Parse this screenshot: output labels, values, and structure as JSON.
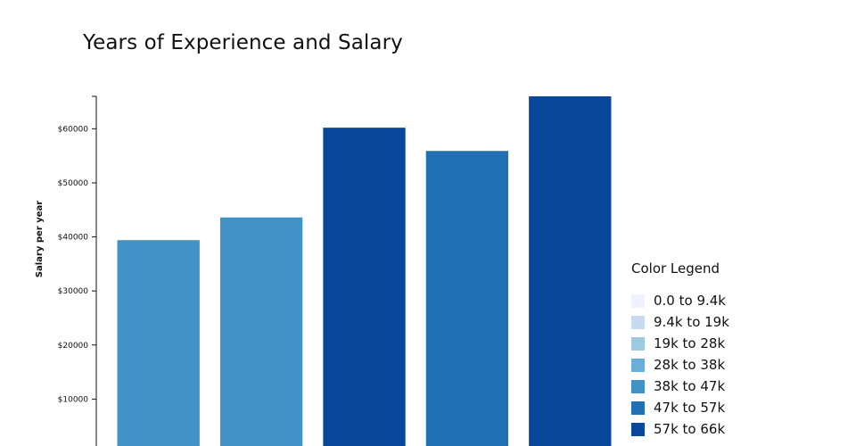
{
  "chart_data": {
    "type": "bar",
    "title": "Years of Experience and Salary",
    "xlabel": "",
    "ylabel": "Salary per year",
    "categories": [
      "",
      "",
      "",
      "",
      ""
    ],
    "values": [
      39400,
      43600,
      60200,
      55900,
      66000
    ],
    "bar_colors": [
      "#4292c6",
      "#4292c6",
      "#08479a",
      "#2270b4",
      "#08479a"
    ],
    "ylim": [
      0,
      66000
    ],
    "y_ticks": [
      10000,
      20000,
      30000,
      40000,
      50000,
      60000
    ],
    "y_tick_labels": [
      "$10000",
      "$20000",
      "$30000",
      "$40000",
      "$50000",
      "$60000"
    ],
    "grid": false
  },
  "legend": {
    "title": "Color Legend",
    "placement": "right",
    "items": [
      {
        "label": "0.0 to 9.4k",
        "color": "#eff3ff"
      },
      {
        "label": "9.4k to 19k",
        "color": "#c6dbef"
      },
      {
        "label": "19k to 28k",
        "color": "#9ecae1"
      },
      {
        "label": "28k to 38k",
        "color": "#6baed6"
      },
      {
        "label": "38k to 47k",
        "color": "#4292c6"
      },
      {
        "label": "47k to 57k",
        "color": "#2270b4"
      },
      {
        "label": "57k to 66k",
        "color": "#08479a"
      }
    ]
  }
}
